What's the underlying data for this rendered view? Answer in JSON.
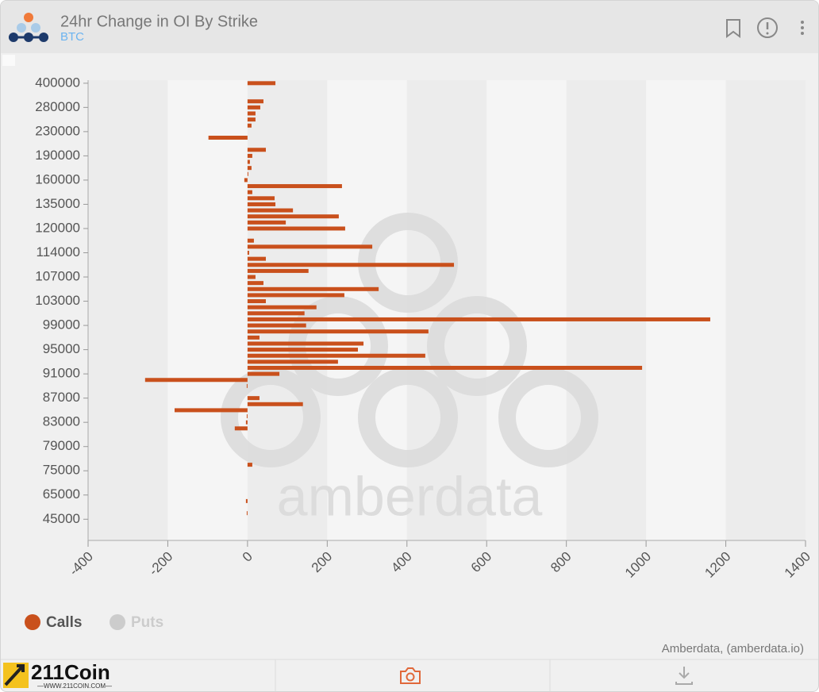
{
  "header": {
    "title": "24hr Change in OI By Strike",
    "subtitle": "BTC"
  },
  "watermark": "amberdata",
  "credit": "Amberdata, (amberdata.io)",
  "brand": {
    "name": "211Coin",
    "url": "—WWW.211COIN.COM—"
  },
  "chart_data": {
    "type": "hbar",
    "categories": [
      "400000",
      null,
      null,
      null,
      "280000",
      null,
      null,
      null,
      "230000",
      null,
      null,
      null,
      "190000",
      null,
      null,
      null,
      "160000",
      null,
      null,
      null,
      "135000",
      null,
      null,
      null,
      "120000",
      null,
      null,
      null,
      "114000",
      null,
      null,
      null,
      "107000",
      null,
      null,
      null,
      "103000",
      null,
      null,
      null,
      "99000",
      null,
      null,
      null,
      "95000",
      null,
      null,
      null,
      "91000",
      null,
      null,
      null,
      "87000",
      null,
      null,
      null,
      "83000",
      null,
      null,
      null,
      "79000",
      null,
      null,
      null,
      "75000",
      null,
      null,
      null,
      "65000",
      null,
      null,
      null,
      "45000",
      null,
      null,
      null
    ],
    "series": [
      {
        "name": "Calls",
        "color": "#c9501c",
        "values": [
          70,
          null,
          null,
          40,
          32,
          20,
          20,
          10,
          null,
          -98,
          null,
          46,
          12,
          6,
          10,
          2,
          -8,
          237,
          12,
          68,
          70,
          114,
          229,
          96,
          245,
          null,
          16,
          313,
          4,
          46,
          518,
          153,
          20,
          40,
          329,
          243,
          46,
          173,
          143,
          1161,
          147,
          454,
          30,
          291,
          277,
          446,
          227,
          990,
          80,
          -257,
          -2,
          null,
          30,
          139,
          -183,
          -2,
          -4,
          -32,
          null,
          null,
          null,
          null,
          null,
          12,
          null,
          null,
          null,
          null,
          null,
          -4,
          null,
          -2,
          null,
          null,
          null,
          null
        ]
      },
      {
        "name": "Puts",
        "color": "#cccccc",
        "hidden": true,
        "values": [
          null,
          null,
          null,
          null,
          null,
          null,
          null,
          null,
          null,
          null,
          null,
          null,
          null,
          null,
          null,
          null,
          null,
          null,
          null,
          null,
          null,
          null,
          null,
          null,
          null,
          null,
          null,
          null,
          null,
          null,
          null,
          null,
          null,
          null,
          null,
          null,
          null,
          null,
          null,
          null,
          null,
          null,
          null,
          null,
          null,
          null,
          null,
          null,
          null,
          null,
          null,
          null,
          null,
          null,
          null,
          null,
          null,
          null,
          null,
          null,
          null,
          null,
          null,
          null,
          null,
          null,
          null,
          null,
          null,
          null,
          null,
          null,
          null,
          null,
          null,
          null
        ]
      }
    ],
    "xlim": [
      -400,
      1400
    ],
    "xticks": [
      -400,
      -200,
      0,
      200,
      400,
      600,
      800,
      1000,
      1200,
      1400
    ],
    "alternate_bands": true,
    "legend": "bottom-left"
  }
}
